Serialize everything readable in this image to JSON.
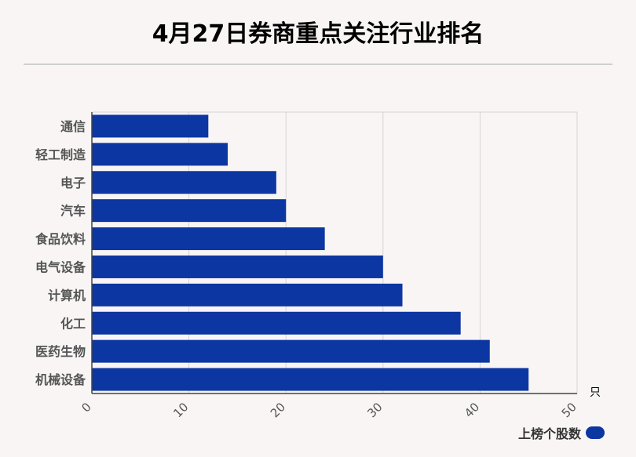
{
  "title": "4月27日券商重点关注行业排名",
  "legend": {
    "label": "上榜个股数"
  },
  "chart_data": {
    "type": "bar",
    "orientation": "horizontal",
    "title": "4月27日券商重点关注行业排名",
    "categories": [
      "通信",
      "轻工制造",
      "电子",
      "汽车",
      "食品饮料",
      "电气设备",
      "计算机",
      "化工",
      "医药生物",
      "机械设备"
    ],
    "series": [
      {
        "name": "上榜个股数",
        "values": [
          12,
          14,
          19,
          20,
          24,
          30,
          32,
          38,
          41,
          45
        ],
        "color": "#0c36a1"
      }
    ],
    "x_ticks": [
      "0",
      "10",
      "20",
      "30",
      "40",
      "50"
    ],
    "xlim": [
      0,
      50
    ],
    "x_unit": "只",
    "grid": true,
    "legend_position": "bottom-right"
  }
}
